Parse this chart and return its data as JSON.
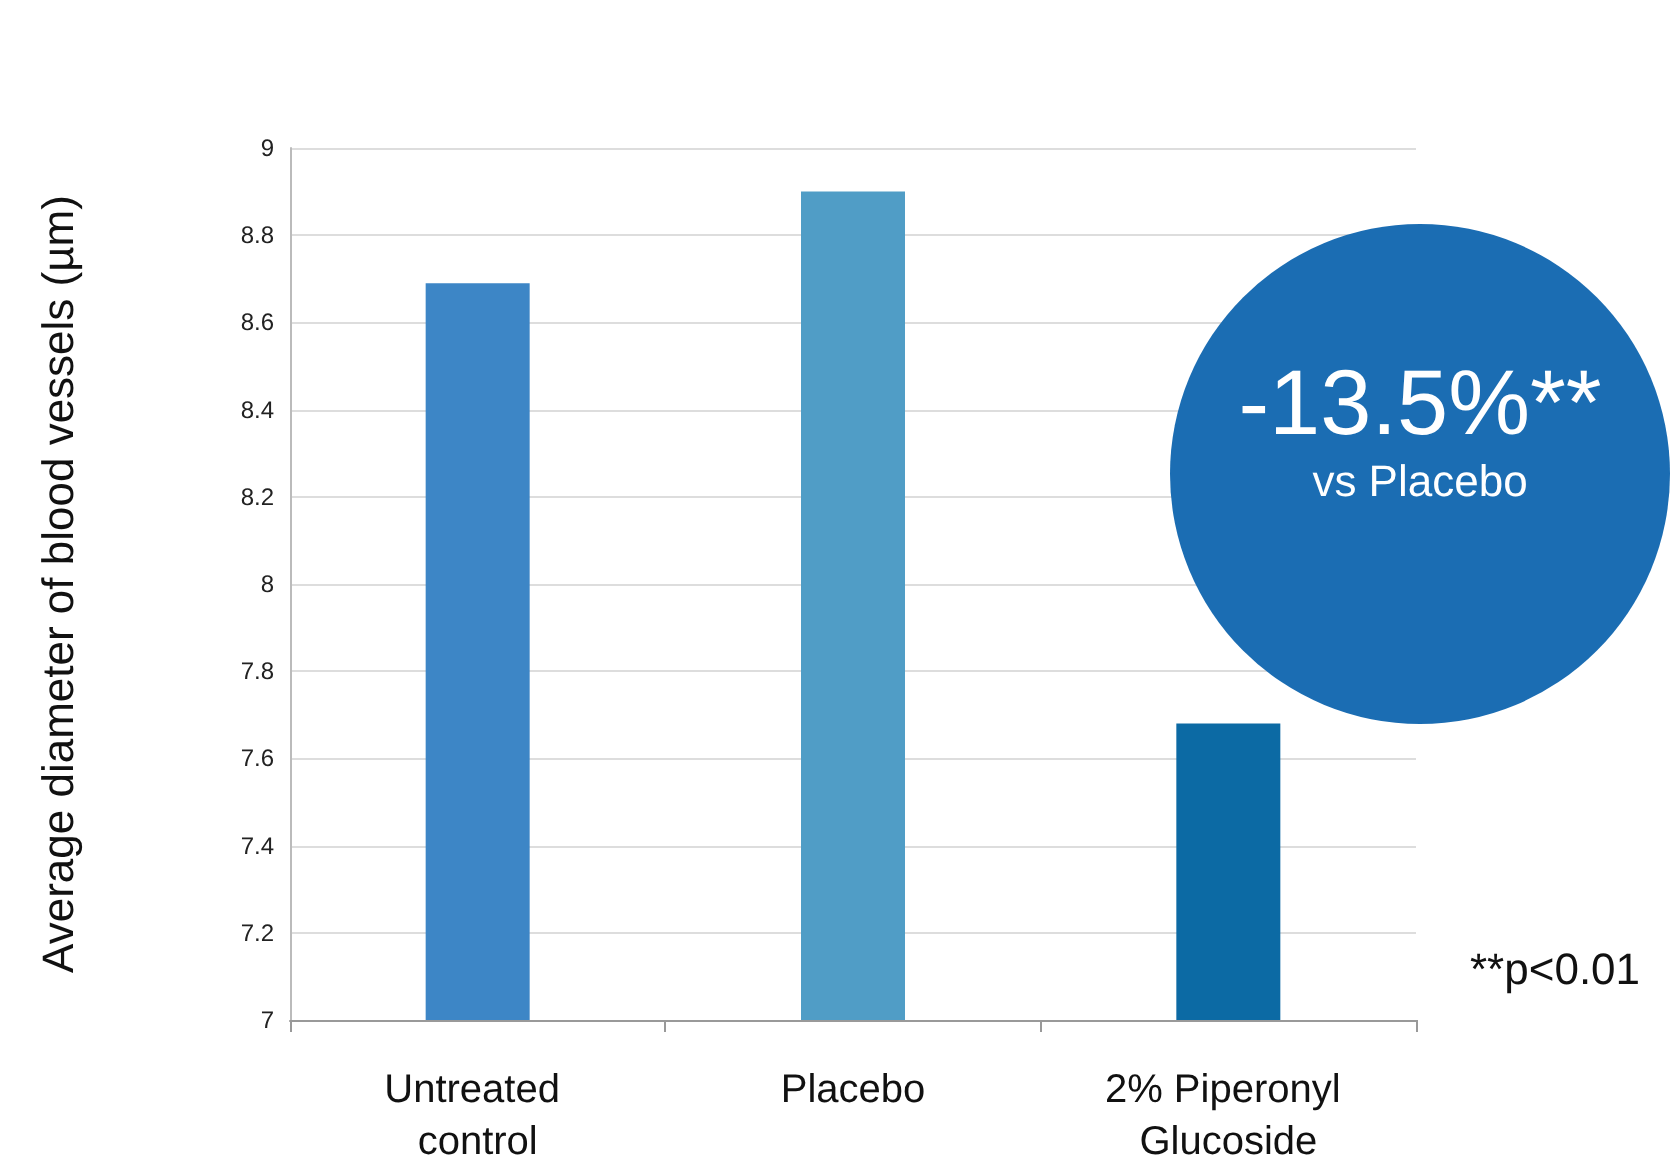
{
  "chart_data": {
    "type": "bar",
    "ylabel": "Average diameter of blood vessels (µm)",
    "categories": [
      "Untreated control",
      "Placebo",
      "2% Piperonyl Glucoside"
    ],
    "values": [
      8.69,
      8.9,
      7.68
    ],
    "colors": [
      "#3d86c6",
      "#509dc6",
      "#0c6aa4"
    ],
    "ylim": [
      7,
      9
    ],
    "yticks": [
      7,
      7.2,
      7.4,
      7.6,
      7.8,
      8,
      8.2,
      8.4,
      8.6,
      8.8,
      9
    ],
    "grid": "y",
    "annotations": [
      "-13.5%**",
      "vs Placebo",
      "**p<0.01"
    ]
  }
}
